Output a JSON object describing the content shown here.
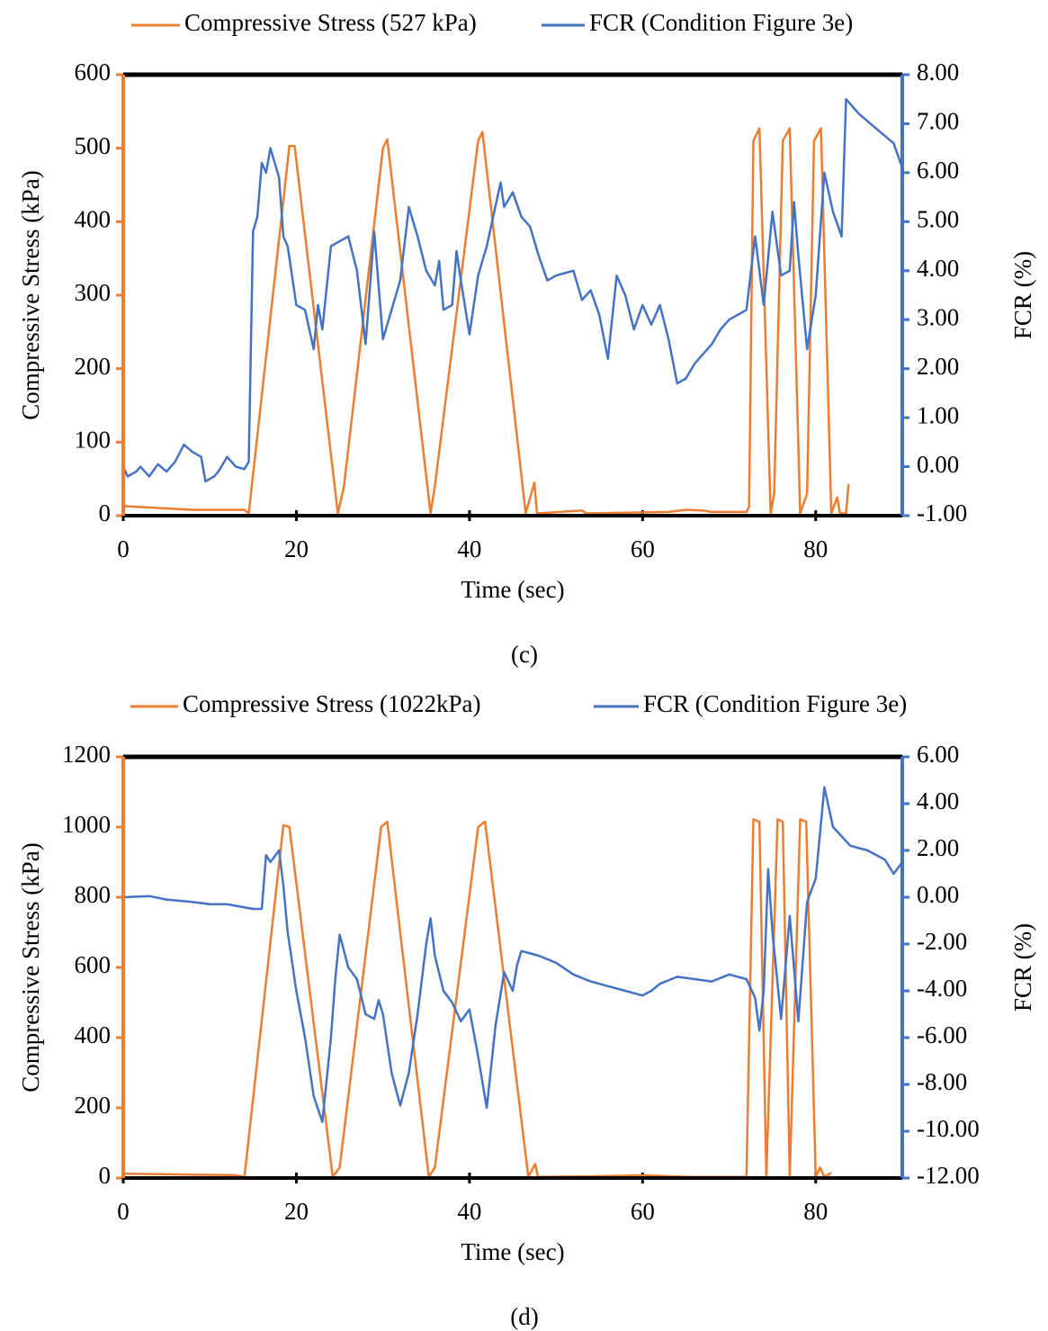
{
  "chart_data": [
    {
      "type": "line",
      "caption": "(c)",
      "x_label": "Time (sec)",
      "y_label": "Compressive Stress (kPa)",
      "y2_label": "FCR (%)",
      "xlim": [
        0,
        90
      ],
      "xticks": [
        0,
        20,
        40,
        60,
        80
      ],
      "ylim": [
        0,
        600
      ],
      "yticks": [
        0,
        100,
        200,
        300,
        400,
        500,
        600
      ],
      "y2lim": [
        -1,
        8
      ],
      "y2ticks": [
        {
          "value": -1,
          "label": "-1.00"
        },
        {
          "value": 0,
          "label": "0.00"
        },
        {
          "value": 1,
          "label": "1.00"
        },
        {
          "value": 2,
          "label": "2.00"
        },
        {
          "value": 3,
          "label": "3.00"
        },
        {
          "value": 4,
          "label": "4.00"
        },
        {
          "value": 5,
          "label": "5.00"
        },
        {
          "value": 6,
          "label": "6.00"
        },
        {
          "value": 7,
          "label": "7.00"
        },
        {
          "value": 8,
          "label": "8.00"
        }
      ],
      "series": [
        {
          "name": "Compressive Stress (527 kPa)",
          "color": "#ed7d31",
          "axis": "y",
          "x": [
            0,
            8,
            14,
            14.5,
            19.2,
            19.8,
            24.8,
            25.5,
            30,
            30.5,
            35.5,
            36,
            41,
            41.5,
            46.5,
            47.5,
            47.8,
            53,
            53.5,
            63,
            65,
            67,
            68,
            72,
            72.3,
            72.8,
            73.5,
            74.8,
            75.2,
            76.2,
            77,
            78.2,
            79,
            79.8,
            80.6,
            81.8,
            82.5,
            82.8,
            83.5,
            83.8
          ],
          "values": [
            13,
            8,
            8,
            3,
            503,
            503,
            3,
            40,
            500,
            512,
            3,
            40,
            510,
            522,
            3,
            45,
            3,
            7,
            3,
            5,
            8,
            7,
            5,
            5,
            12,
            510,
            527,
            3,
            30,
            510,
            527,
            3,
            30,
            510,
            527,
            3,
            25,
            3,
            3,
            43
          ]
        },
        {
          "name": "FCR (Condition Figure 3e)",
          "color": "#4472c4",
          "axis": "y2",
          "x": [
            0,
            0.5,
            1.5,
            2,
            3,
            4,
            5,
            6,
            7,
            8,
            9,
            9.5,
            10.5,
            11,
            12,
            13,
            14,
            14.5,
            15,
            15.5,
            16,
            16.5,
            17,
            18,
            18.5,
            19,
            20,
            21,
            22,
            22.5,
            23,
            24,
            25,
            26,
            27,
            28,
            29,
            30,
            31,
            32,
            33,
            34,
            35,
            36,
            36.5,
            37,
            38,
            38.5,
            39,
            40,
            41,
            42,
            43.6,
            44,
            45,
            46,
            47,
            48,
            49,
            50,
            52,
            53,
            54,
            55,
            56,
            57,
            58,
            59,
            60,
            61,
            62,
            63,
            64,
            65,
            66,
            67,
            68,
            69,
            70,
            71,
            72,
            73,
            74,
            75,
            76,
            77,
            77.5,
            78,
            79,
            80,
            81,
            82,
            83,
            83.5,
            85,
            87,
            89,
            90
          ],
          "values": [
            0,
            -0.2,
            -0.1,
            0,
            -0.2,
            0.05,
            -0.1,
            0.1,
            0.45,
            0.3,
            0.2,
            -0.3,
            -0.2,
            -0.1,
            0.2,
            0,
            -0.05,
            0.1,
            4.8,
            5.1,
            6.2,
            6.0,
            6.5,
            5.9,
            4.7,
            4.5,
            3.3,
            3.2,
            2.4,
            3.3,
            2.8,
            4.5,
            4.6,
            4.7,
            4.0,
            2.5,
            4.8,
            2.6,
            3.2,
            3.8,
            5.3,
            4.7,
            4.0,
            3.7,
            4.2,
            3.2,
            3.3,
            4.4,
            3.8,
            2.7,
            3.9,
            4.5,
            5.8,
            5.3,
            5.6,
            5.1,
            4.9,
            4.3,
            3.8,
            3.9,
            4.0,
            3.4,
            3.6,
            3.1,
            2.2,
            3.9,
            3.5,
            2.8,
            3.3,
            2.9,
            3.3,
            2.6,
            1.7,
            1.8,
            2.1,
            2.3,
            2.5,
            2.8,
            3.0,
            3.1,
            3.2,
            4.7,
            3.3,
            5.2,
            3.9,
            4.0,
            5.4,
            4.3,
            2.4,
            3.5,
            6.0,
            5.2,
            4.7,
            7.5,
            7.2,
            6.9,
            6.6,
            6.1
          ]
        }
      ]
    },
    {
      "type": "line",
      "caption": "(d)",
      "x_label": "Time (sec)",
      "y_label": "Compressive Stress (kPa)",
      "y2_label": "FCR (%)",
      "xlim": [
        0,
        90
      ],
      "xticks": [
        0,
        20,
        40,
        60,
        80
      ],
      "ylim": [
        0,
        1200
      ],
      "yticks": [
        0,
        200,
        400,
        600,
        800,
        1000,
        1200
      ],
      "y2lim": [
        -12,
        6
      ],
      "y2ticks": [
        {
          "value": -12,
          "label": "-12.00"
        },
        {
          "value": -10,
          "label": "-10.00"
        },
        {
          "value": -8,
          "label": "-8.00"
        },
        {
          "value": -6,
          "label": "-6.00"
        },
        {
          "value": -4,
          "label": "-4.00"
        },
        {
          "value": -2,
          "label": "-2.00"
        },
        {
          "value": 0,
          "label": "0.00"
        },
        {
          "value": 2,
          "label": "2.00"
        },
        {
          "value": 4,
          "label": "4.00"
        },
        {
          "value": 6,
          "label": "6.00"
        }
      ],
      "series": [
        {
          "name": "Compressive Stress (1022kPa)",
          "color": "#ed7d31",
          "axis": "y",
          "x": [
            0,
            13,
            14,
            18.5,
            19.2,
            24.2,
            25,
            29.8,
            30.5,
            35.3,
            36,
            41,
            41.8,
            46.8,
            47.6,
            47.9,
            55,
            60,
            65,
            72,
            72.8,
            73.5,
            74.3,
            75.6,
            76.2,
            77,
            78.2,
            78.9,
            80,
            80.5,
            81,
            81.8
          ],
          "values": [
            12,
            8,
            3,
            1005,
            1000,
            3,
            30,
            1000,
            1015,
            3,
            30,
            1000,
            1015,
            3,
            40,
            3,
            5,
            8,
            3,
            3,
            1022,
            1015,
            3,
            1022,
            1015,
            3,
            1022,
            1015,
            3,
            30,
            3,
            15
          ]
        },
        {
          "name": "FCR (Condition Figure 3e)",
          "color": "#4472c4",
          "axis": "y2",
          "x": [
            0,
            3,
            5,
            8,
            10,
            12,
            15,
            16,
            16.5,
            17,
            18,
            18.5,
            19,
            20,
            21,
            22,
            23,
            24,
            24.5,
            25,
            26,
            27,
            28,
            29,
            29.5,
            30,
            31,
            32,
            33,
            34,
            35,
            35.5,
            36,
            37,
            38,
            39,
            40,
            41,
            42,
            43,
            44,
            45,
            45.5,
            46,
            48,
            50,
            52,
            54,
            56,
            58,
            60,
            61,
            62,
            64,
            66,
            68,
            70,
            72,
            73,
            73.5,
            74,
            74.5,
            75,
            76,
            77,
            78,
            79,
            80,
            81,
            82,
            84,
            86,
            88,
            89,
            90
          ],
          "values": [
            0,
            0.05,
            -0.1,
            -0.2,
            -0.3,
            -0.3,
            -0.5,
            -0.5,
            1.8,
            1.5,
            2.0,
            0.5,
            -1.5,
            -4.0,
            -6.0,
            -8.5,
            -9.6,
            -6.0,
            -3.5,
            -1.6,
            -3.0,
            -3.5,
            -5.0,
            -5.2,
            -4.4,
            -5.0,
            -7.5,
            -8.9,
            -7.5,
            -5.0,
            -2.0,
            -0.9,
            -2.5,
            -4.0,
            -4.5,
            -5.3,
            -4.8,
            -6.8,
            -9.0,
            -5.5,
            -3.2,
            -4.0,
            -2.9,
            -2.3,
            -2.5,
            -2.8,
            -3.3,
            -3.6,
            -3.8,
            -4.0,
            -4.2,
            -4.0,
            -3.7,
            -3.4,
            -3.5,
            -3.6,
            -3.3,
            -3.5,
            -4.3,
            -5.7,
            -4.0,
            1.2,
            -1.5,
            -5.2,
            -0.8,
            -5.3,
            -0.2,
            0.8,
            4.7,
            3.0,
            2.2,
            2.0,
            1.6,
            1.0,
            1.5
          ]
        }
      ]
    }
  ]
}
